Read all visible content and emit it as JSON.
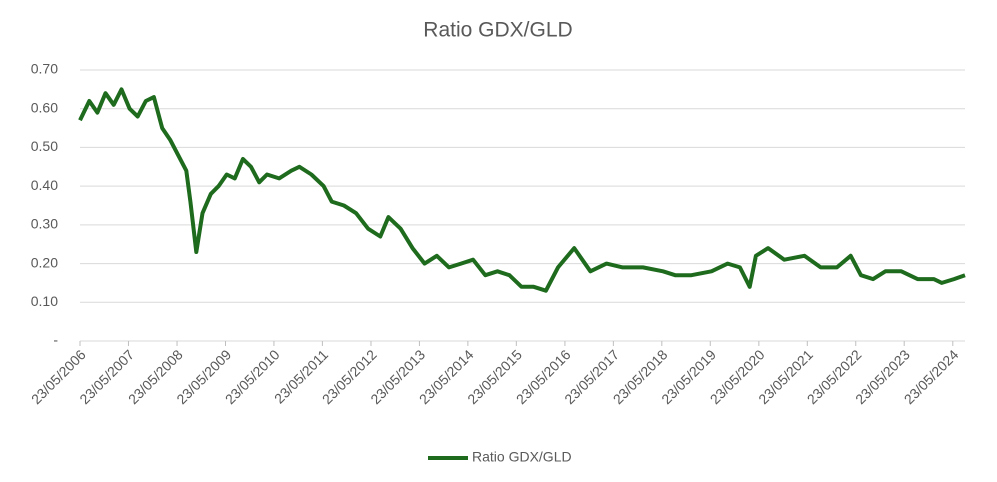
{
  "chart_data": {
    "type": "line",
    "title": "Ratio GDX/GLD",
    "x": [
      "2006-05-23",
      "2006-08-01",
      "2006-10-01",
      "2006-12-01",
      "2007-02-01",
      "2007-04-01",
      "2007-06-01",
      "2007-08-01",
      "2007-10-01",
      "2007-12-01",
      "2008-02-01",
      "2008-04-01",
      "2008-06-01",
      "2008-08-01",
      "2008-09-01",
      "2008-10-15",
      "2008-12-01",
      "2009-02-01",
      "2009-04-01",
      "2009-06-01",
      "2009-08-01",
      "2009-10-01",
      "2009-12-01",
      "2010-02-01",
      "2010-04-01",
      "2010-07-01",
      "2010-10-01",
      "2010-12-01",
      "2011-03-01",
      "2011-06-01",
      "2011-08-01",
      "2011-11-01",
      "2012-02-01",
      "2012-05-01",
      "2012-08-01",
      "2012-10-01",
      "2013-01-01",
      "2013-04-01",
      "2013-07-01",
      "2013-10-01",
      "2014-01-01",
      "2014-04-01",
      "2014-07-01",
      "2014-10-01",
      "2015-01-01",
      "2015-04-01",
      "2015-07-01",
      "2015-10-01",
      "2016-01-01",
      "2016-04-01",
      "2016-08-01",
      "2016-12-01",
      "2017-04-01",
      "2017-08-01",
      "2018-01-01",
      "2018-06-01",
      "2018-09-01",
      "2019-01-01",
      "2019-06-01",
      "2019-10-01",
      "2020-01-01",
      "2020-03-15",
      "2020-05-01",
      "2020-08-01",
      "2020-12-01",
      "2021-05-01",
      "2021-09-01",
      "2022-01-01",
      "2022-04-15",
      "2022-07-01",
      "2022-10-01",
      "2023-01-01",
      "2023-05-01",
      "2023-09-01",
      "2024-01-01",
      "2024-03-01",
      "2024-06-01",
      "2024-08-23"
    ],
    "series": [
      {
        "name": "Ratio GDX/GLD",
        "color": "#1e6b1e",
        "values": [
          0.57,
          0.62,
          0.59,
          0.64,
          0.61,
          0.65,
          0.6,
          0.58,
          0.62,
          0.63,
          0.55,
          0.52,
          0.48,
          0.44,
          0.36,
          0.23,
          0.33,
          0.38,
          0.4,
          0.43,
          0.42,
          0.47,
          0.45,
          0.41,
          0.43,
          0.42,
          0.44,
          0.45,
          0.43,
          0.4,
          0.36,
          0.35,
          0.33,
          0.29,
          0.27,
          0.32,
          0.29,
          0.24,
          0.2,
          0.22,
          0.19,
          0.2,
          0.21,
          0.17,
          0.18,
          0.17,
          0.14,
          0.14,
          0.13,
          0.19,
          0.24,
          0.18,
          0.2,
          0.19,
          0.19,
          0.18,
          0.17,
          0.17,
          0.18,
          0.2,
          0.19,
          0.14,
          0.22,
          0.24,
          0.21,
          0.22,
          0.19,
          0.19,
          0.22,
          0.17,
          0.16,
          0.18,
          0.18,
          0.16,
          0.16,
          0.15,
          0.16,
          0.17
        ]
      }
    ],
    "xlim": [
      "2006-05-23",
      "2024-08-23"
    ],
    "xticks": [
      {
        "value": "2006-05-23",
        "label": "23/05/2006"
      },
      {
        "value": "2007-05-23",
        "label": "23/05/2007"
      },
      {
        "value": "2008-05-23",
        "label": "23/05/2008"
      },
      {
        "value": "2009-05-23",
        "label": "23/05/2009"
      },
      {
        "value": "2010-05-23",
        "label": "23/05/2010"
      },
      {
        "value": "2011-05-23",
        "label": "23/05/2011"
      },
      {
        "value": "2012-05-23",
        "label": "23/05/2012"
      },
      {
        "value": "2013-05-23",
        "label": "23/05/2013"
      },
      {
        "value": "2014-05-23",
        "label": "23/05/2014"
      },
      {
        "value": "2015-05-23",
        "label": "23/05/2015"
      },
      {
        "value": "2016-05-23",
        "label": "23/05/2016"
      },
      {
        "value": "2017-05-23",
        "label": "23/05/2017"
      },
      {
        "value": "2018-05-23",
        "label": "23/05/2018"
      },
      {
        "value": "2019-05-23",
        "label": "23/05/2019"
      },
      {
        "value": "2020-05-23",
        "label": "23/05/2020"
      },
      {
        "value": "2021-05-23",
        "label": "23/05/2021"
      },
      {
        "value": "2022-05-23",
        "label": "23/05/2022"
      },
      {
        "value": "2023-05-23",
        "label": "23/05/2023"
      },
      {
        "value": "2024-05-23",
        "label": "23/05/2024"
      }
    ],
    "ylim": [
      0,
      0.7
    ],
    "yticks": [
      {
        "value": 0,
        "label": "-"
      },
      {
        "value": 0.1,
        "label": "0.10"
      },
      {
        "value": 0.2,
        "label": "0.20"
      },
      {
        "value": 0.3,
        "label": "0.30"
      },
      {
        "value": 0.4,
        "label": "0.40"
      },
      {
        "value": 0.5,
        "label": "0.50"
      },
      {
        "value": 0.6,
        "label": "0.60"
      },
      {
        "value": 0.7,
        "label": "0.70"
      }
    ],
    "grid": true,
    "legend": "bottom"
  }
}
